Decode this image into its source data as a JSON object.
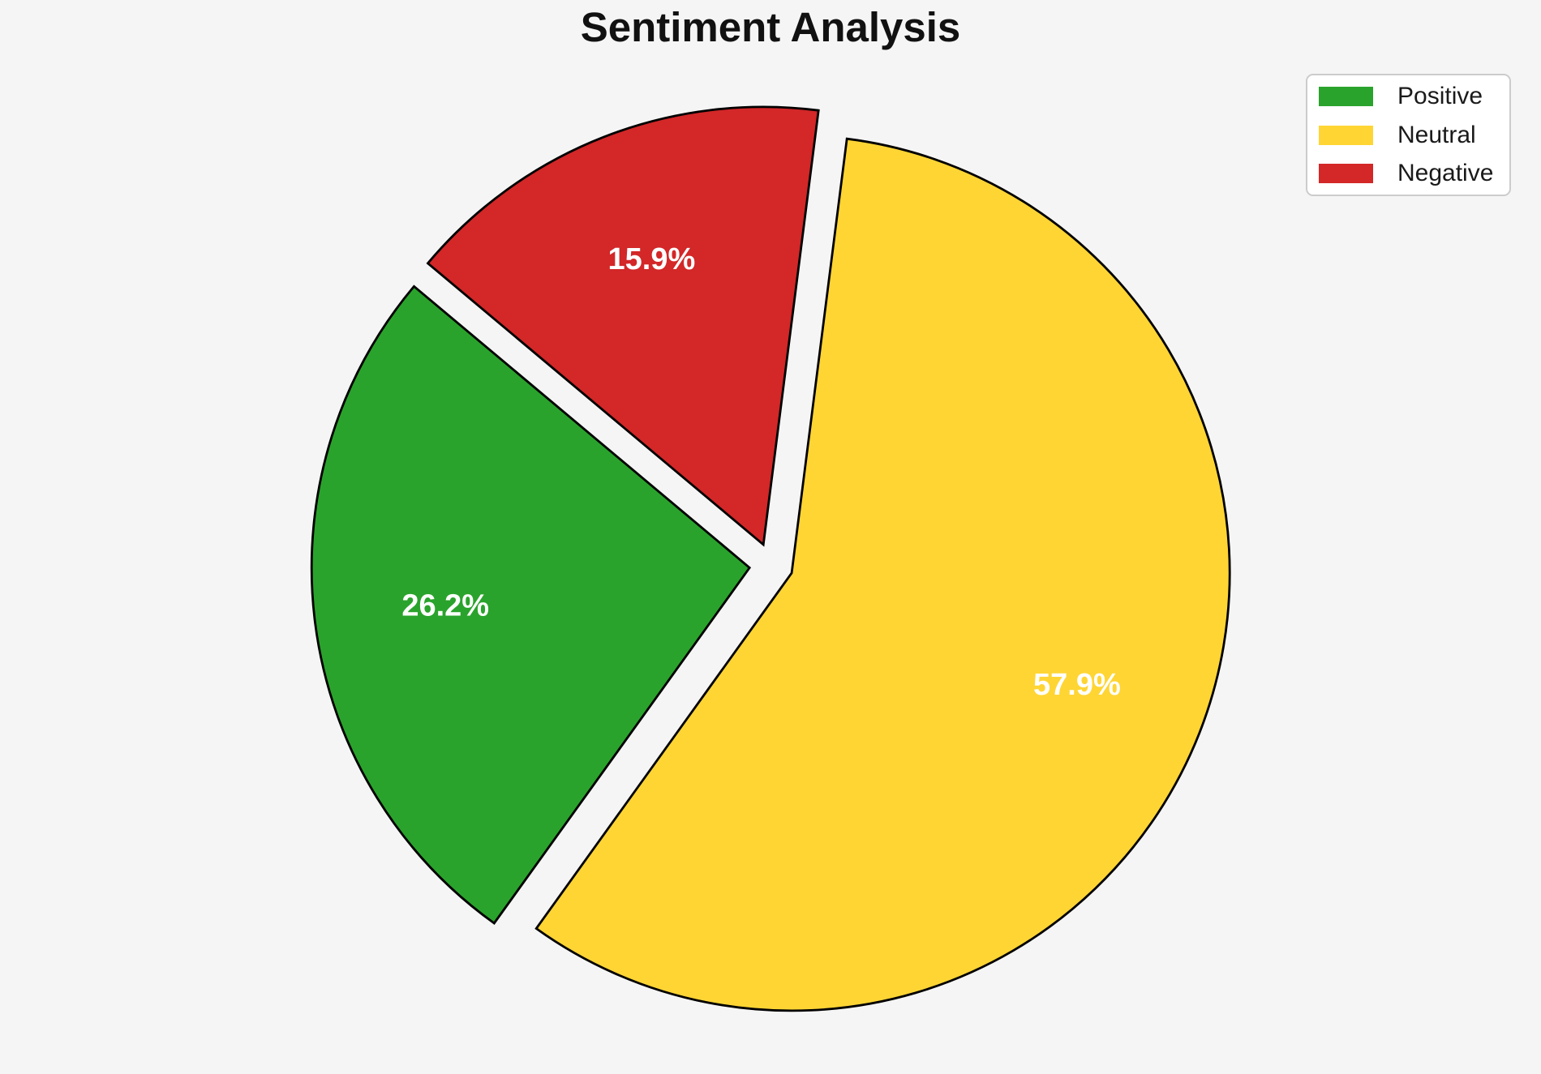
{
  "chart_data": {
    "type": "pie",
    "title": "Sentiment Analysis",
    "labels": [
      "Positive",
      "Neutral",
      "Negative"
    ],
    "values": [
      26.2,
      57.9,
      15.9
    ],
    "pct_labels": [
      "26.2%",
      "57.9%",
      "15.9%"
    ],
    "colors": [
      "#2aa32c",
      "#ffd534",
      "#d32728"
    ],
    "legend": {
      "position": "upper right",
      "entries": [
        "Positive",
        "Neutral",
        "Negative"
      ]
    },
    "style": {
      "start_angle": 140,
      "counterclock": true,
      "explode": 0.05,
      "pct_distance": 0.7,
      "edge_color": "#000000",
      "pct_label_color": "#ffffff",
      "background": "#f5f5f5"
    }
  }
}
